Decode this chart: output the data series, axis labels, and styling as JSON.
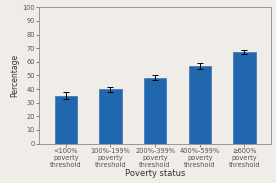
{
  "categories": [
    "<100%\npoverty\nthreshold",
    "100%-199%\npoverty\nthreshold",
    "200%-399%\npoverty\nthreshold",
    "400%-599%\npoverty\nthreshold",
    "≥600%\npoverty\nthreshold"
  ],
  "values": [
    35.0,
    40.0,
    48.5,
    57.0,
    67.0
  ],
  "errors": [
    2.5,
    1.8,
    1.5,
    2.0,
    1.5
  ],
  "bar_color": "#2167AE",
  "bar_edge_color": "#2167AE",
  "xlabel": "Poverty status",
  "ylabel": "Percentage",
  "ylim": [
    0,
    100
  ],
  "yticks": [
    0,
    10,
    20,
    30,
    40,
    50,
    60,
    70,
    80,
    90,
    100
  ],
  "background_color": "#f0ede8",
  "plot_background": "#f0ede8",
  "tick_fontsize": 4.8,
  "xlabel_fontsize": 6.0,
  "ylabel_fontsize": 5.5
}
